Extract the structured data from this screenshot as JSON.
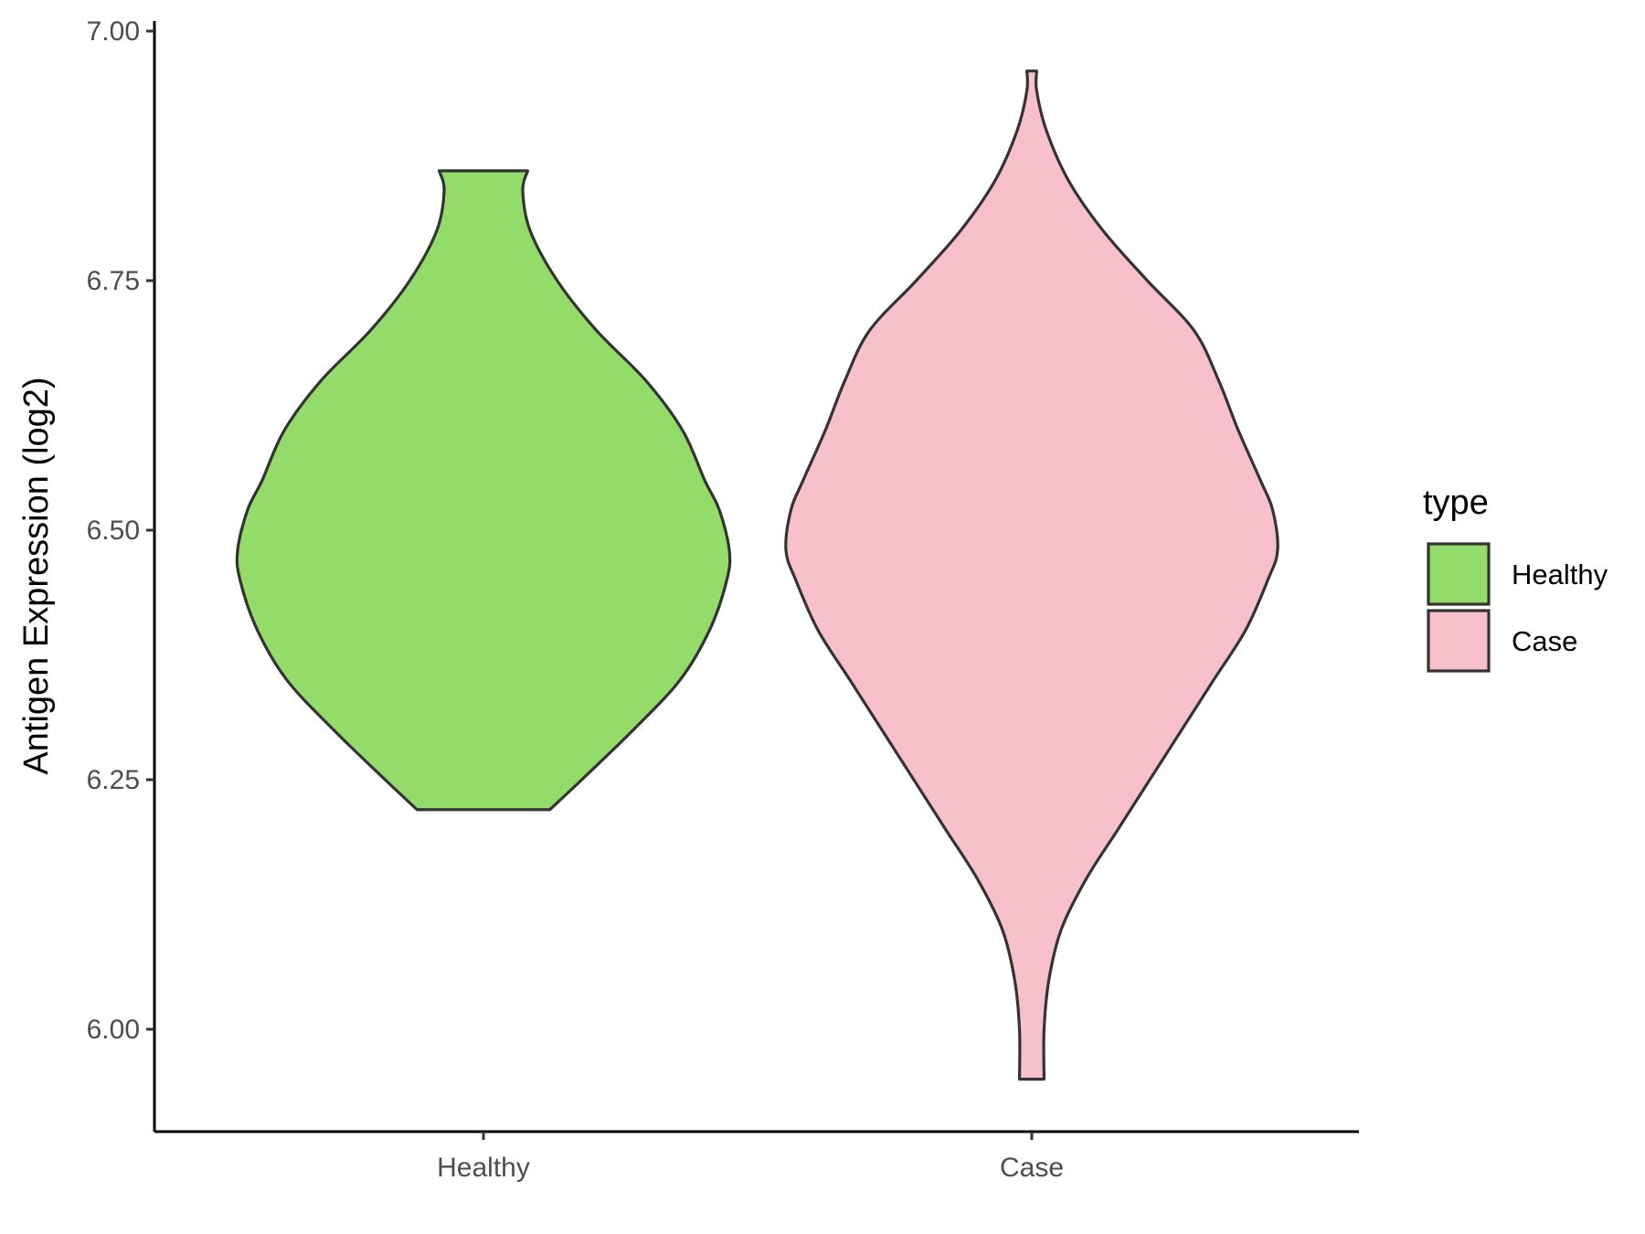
{
  "chart_data": {
    "type": "violin",
    "title": "",
    "xlabel": "",
    "ylabel": "Antigen Expression (log2)",
    "ylim": [
      5.9,
      7.02
    ],
    "yticks": [
      "6.00",
      "6.25",
      "6.50",
      "6.75",
      "7.00"
    ],
    "categories": [
      "Healthy",
      "Case"
    ],
    "grid": false,
    "legend": {
      "title": "type",
      "position": "right",
      "entries": [
        "Healthy",
        "Case"
      ]
    },
    "series": [
      {
        "name": "Healthy",
        "color": "#93dc6a",
        "min": 6.22,
        "max": 6.86,
        "density": [
          [
            6.22,
            0.27
          ],
          [
            6.25,
            0.4
          ],
          [
            6.3,
            0.61
          ],
          [
            6.35,
            0.8
          ],
          [
            6.4,
            0.92
          ],
          [
            6.45,
            0.99
          ],
          [
            6.48,
            1.0
          ],
          [
            6.52,
            0.96
          ],
          [
            6.55,
            0.9
          ],
          [
            6.6,
            0.81
          ],
          [
            6.65,
            0.66
          ],
          [
            6.7,
            0.46
          ],
          [
            6.75,
            0.3
          ],
          [
            6.8,
            0.19
          ],
          [
            6.84,
            0.16
          ],
          [
            6.86,
            0.18
          ]
        ]
      },
      {
        "name": "Case",
        "color": "#f8c0cb",
        "min": 5.95,
        "max": 6.96,
        "density": [
          [
            5.95,
            0.05
          ],
          [
            6.0,
            0.05
          ],
          [
            6.05,
            0.07
          ],
          [
            6.1,
            0.12
          ],
          [
            6.15,
            0.22
          ],
          [
            6.2,
            0.35
          ],
          [
            6.25,
            0.48
          ],
          [
            6.3,
            0.61
          ],
          [
            6.35,
            0.74
          ],
          [
            6.4,
            0.87
          ],
          [
            6.45,
            0.96
          ],
          [
            6.48,
            1.0
          ],
          [
            6.52,
            0.98
          ],
          [
            6.55,
            0.93
          ],
          [
            6.6,
            0.84
          ],
          [
            6.65,
            0.76
          ],
          [
            6.7,
            0.66
          ],
          [
            6.75,
            0.47
          ],
          [
            6.8,
            0.29
          ],
          [
            6.85,
            0.15
          ],
          [
            6.9,
            0.06
          ],
          [
            6.94,
            0.02
          ],
          [
            6.96,
            0.02
          ]
        ]
      }
    ]
  }
}
